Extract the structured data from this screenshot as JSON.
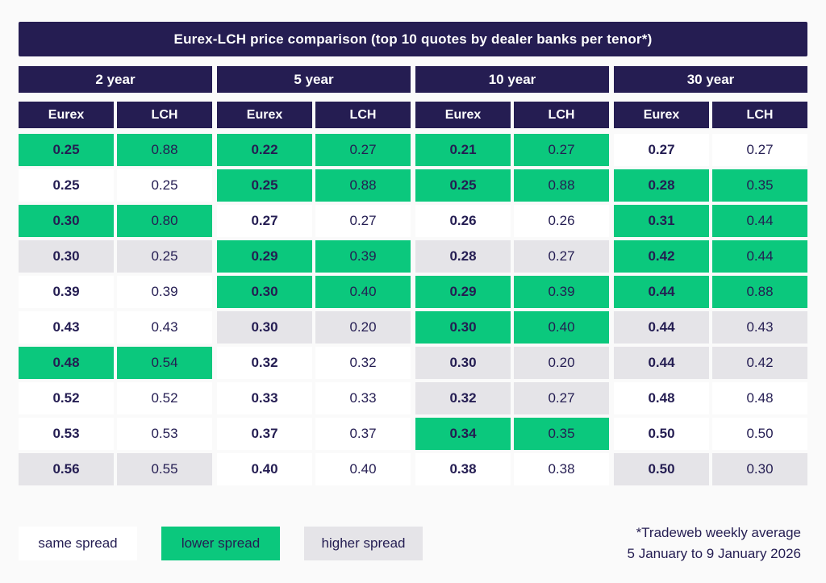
{
  "title": "Eurex-LCH price comparison (top 10 quotes by dealer banks per tenor*)",
  "chart_data": {
    "type": "table",
    "title": "Eurex-LCH price comparison (top 10 quotes by dealer banks per tenor*)",
    "column_headers": [
      "Eurex",
      "LCH"
    ],
    "status_meaning": {
      "same": "same spread",
      "lower": "lower spread",
      "higher": "higher spread"
    },
    "tenors": [
      {
        "label": "2 year",
        "rows": [
          {
            "eurex": "0.25",
            "lch": "0.88",
            "status": "lower"
          },
          {
            "eurex": "0.25",
            "lch": "0.25",
            "status": "same"
          },
          {
            "eurex": "0.30",
            "lch": "0.80",
            "status": "lower"
          },
          {
            "eurex": "0.30",
            "lch": "0.25",
            "status": "higher"
          },
          {
            "eurex": "0.39",
            "lch": "0.39",
            "status": "same"
          },
          {
            "eurex": "0.43",
            "lch": "0.43",
            "status": "same"
          },
          {
            "eurex": "0.48",
            "lch": "0.54",
            "status": "lower"
          },
          {
            "eurex": "0.52",
            "lch": "0.52",
            "status": "same"
          },
          {
            "eurex": "0.53",
            "lch": "0.53",
            "status": "same"
          },
          {
            "eurex": "0.56",
            "lch": "0.55",
            "status": "higher"
          }
        ]
      },
      {
        "label": "5 year",
        "rows": [
          {
            "eurex": "0.22",
            "lch": "0.27",
            "status": "lower"
          },
          {
            "eurex": "0.25",
            "lch": "0.88",
            "status": "lower"
          },
          {
            "eurex": "0.27",
            "lch": "0.27",
            "status": "same"
          },
          {
            "eurex": "0.29",
            "lch": "0.39",
            "status": "lower"
          },
          {
            "eurex": "0.30",
            "lch": "0.40",
            "status": "lower"
          },
          {
            "eurex": "0.30",
            "lch": "0.20",
            "status": "higher"
          },
          {
            "eurex": "0.32",
            "lch": "0.32",
            "status": "same"
          },
          {
            "eurex": "0.33",
            "lch": "0.33",
            "status": "same"
          },
          {
            "eurex": "0.37",
            "lch": "0.37",
            "status": "same"
          },
          {
            "eurex": "0.40",
            "lch": "0.40",
            "status": "same"
          }
        ]
      },
      {
        "label": "10 year",
        "rows": [
          {
            "eurex": "0.21",
            "lch": "0.27",
            "status": "lower"
          },
          {
            "eurex": "0.25",
            "lch": "0.88",
            "status": "lower"
          },
          {
            "eurex": "0.26",
            "lch": "0.26",
            "status": "same"
          },
          {
            "eurex": "0.28",
            "lch": "0.27",
            "status": "higher"
          },
          {
            "eurex": "0.29",
            "lch": "0.39",
            "status": "lower"
          },
          {
            "eurex": "0.30",
            "lch": "0.40",
            "status": "lower"
          },
          {
            "eurex": "0.30",
            "lch": "0.20",
            "status": "higher"
          },
          {
            "eurex": "0.32",
            "lch": "0.27",
            "status": "higher"
          },
          {
            "eurex": "0.34",
            "lch": "0.35",
            "status": "lower"
          },
          {
            "eurex": "0.38",
            "lch": "0.38",
            "status": "same"
          }
        ]
      },
      {
        "label": "30 year",
        "rows": [
          {
            "eurex": "0.27",
            "lch": "0.27",
            "status": "same"
          },
          {
            "eurex": "0.28",
            "lch": "0.35",
            "status": "lower"
          },
          {
            "eurex": "0.31",
            "lch": "0.44",
            "status": "lower"
          },
          {
            "eurex": "0.42",
            "lch": "0.44",
            "status": "lower"
          },
          {
            "eurex": "0.44",
            "lch": "0.88",
            "status": "lower"
          },
          {
            "eurex": "0.44",
            "lch": "0.43",
            "status": "higher"
          },
          {
            "eurex": "0.44",
            "lch": "0.42",
            "status": "higher"
          },
          {
            "eurex": "0.48",
            "lch": "0.48",
            "status": "same"
          },
          {
            "eurex": "0.50",
            "lch": "0.50",
            "status": "same"
          },
          {
            "eurex": "0.50",
            "lch": "0.30",
            "status": "higher"
          }
        ]
      }
    ],
    "legend": [
      {
        "label": "same spread",
        "status": "same"
      },
      {
        "label": "lower spread",
        "status": "lower"
      },
      {
        "label": "higher spread",
        "status": "higher"
      }
    ],
    "footnote_lines": [
      "*Tradeweb weekly average",
      "5 January to 9 January 2026"
    ]
  },
  "colors": {
    "navy_header": "#251d52",
    "lower_green": "#0bc87d",
    "higher_gray": "#e5e4e8",
    "same_white": "#ffffff",
    "text_navy": "#241d52",
    "page_bg": "#fafafa"
  }
}
